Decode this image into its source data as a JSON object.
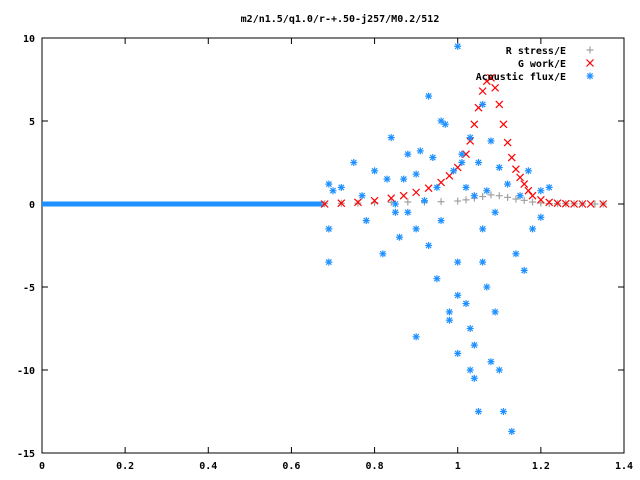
{
  "chart_data": {
    "type": "scatter",
    "title": "m2/n1.5/q1.0/r-+.50-j257/M0.2/512",
    "xlabel": "",
    "ylabel": "",
    "xlim": [
      0,
      1.4
    ],
    "ylim": [
      -15,
      10
    ],
    "x_ticks": [
      "0",
      "0.2",
      "0.4",
      "0.6",
      "0.8",
      "1",
      "1.2",
      "1.4"
    ],
    "y_ticks": [
      "10",
      "5",
      "0",
      "-5",
      "-10",
      "-15"
    ],
    "legend_position": "top-right",
    "grid": false,
    "series": [
      {
        "name": "R stress/E",
        "marker": "plus",
        "color": "#a0a0a0",
        "x": [
          0.68,
          0.72,
          0.76,
          0.8,
          0.84,
          0.88,
          0.92,
          0.96,
          1.0,
          1.02,
          1.04,
          1.06,
          1.08,
          1.1,
          1.12,
          1.14,
          1.16,
          1.18,
          1.2,
          1.22,
          1.24,
          1.26,
          1.28,
          1.3,
          1.33,
          1.35
        ],
        "y": [
          0.02,
          0.04,
          0.05,
          0.08,
          0.1,
          0.12,
          0.12,
          0.14,
          0.18,
          0.25,
          0.35,
          0.45,
          0.55,
          0.5,
          0.4,
          0.3,
          0.22,
          0.12,
          0.06,
          0.03,
          0.02,
          0.02,
          0.01,
          0.01,
          0.0,
          0.0
        ]
      },
      {
        "name": "G work/E",
        "marker": "cross",
        "color": "#ff0000",
        "x": [
          0.68,
          0.72,
          0.76,
          0.8,
          0.84,
          0.87,
          0.9,
          0.93,
          0.96,
          0.98,
          1.0,
          1.02,
          1.03,
          1.04,
          1.05,
          1.06,
          1.07,
          1.08,
          1.09,
          1.1,
          1.11,
          1.12,
          1.13,
          1.14,
          1.15,
          1.16,
          1.17,
          1.18,
          1.2,
          1.22,
          1.24,
          1.26,
          1.28,
          1.3,
          1.32,
          1.35
        ],
        "y": [
          0.0,
          0.05,
          0.1,
          0.2,
          0.35,
          0.5,
          0.7,
          0.95,
          1.3,
          1.7,
          2.2,
          3.0,
          3.8,
          4.8,
          5.8,
          6.8,
          7.4,
          7.6,
          7.0,
          6.0,
          4.8,
          3.7,
          2.8,
          2.1,
          1.6,
          1.2,
          0.8,
          0.5,
          0.25,
          0.1,
          0.05,
          0.02,
          0.0,
          0.0,
          0.0,
          0.0
        ]
      },
      {
        "name": "Acoustic flux/E",
        "marker": "star",
        "color": "#1e90ff",
        "x": [
          0.69,
          0.69,
          0.69,
          0.7,
          0.72,
          0.75,
          0.77,
          0.78,
          0.8,
          0.82,
          0.83,
          0.84,
          0.85,
          0.86,
          0.87,
          0.88,
          0.88,
          0.9,
          0.9,
          0.91,
          0.92,
          0.93,
          0.94,
          0.95,
          0.95,
          0.96,
          0.97,
          0.98,
          0.99,
          1.0,
          1.0,
          1.0,
          1.01,
          1.02,
          1.02,
          1.03,
          1.03,
          1.04,
          1.04,
          1.05,
          1.05,
          1.06,
          1.06,
          1.07,
          1.07,
          1.08,
          1.08,
          1.09,
          1.09,
          1.1,
          1.1,
          1.11,
          1.12,
          1.13,
          1.14,
          1.15,
          1.16,
          1.17,
          1.18,
          1.2,
          1.2,
          1.22,
          0.93,
          0.96,
          0.98,
          1.01,
          1.04,
          1.06,
          0.9,
          0.85,
          1.0,
          1.03
        ],
        "y": [
          1.2,
          -1.5,
          -3.5,
          0.8,
          1.0,
          2.5,
          0.5,
          -1.0,
          2.0,
          -3.0,
          1.5,
          4.0,
          0.0,
          -2.0,
          1.5,
          3.0,
          -0.5,
          1.8,
          -1.5,
          3.2,
          0.2,
          -2.5,
          2.8,
          -4.5,
          1.0,
          -1.0,
          4.8,
          -6.5,
          2.0,
          -3.5,
          9.5,
          -9.0,
          3.0,
          -6.0,
          1.0,
          -7.5,
          4.0,
          -10.5,
          0.5,
          -12.5,
          2.5,
          -3.5,
          6.0,
          -5.0,
          0.8,
          -9.5,
          3.8,
          -6.5,
          -0.5,
          -10.0,
          2.2,
          -12.5,
          1.2,
          -13.7,
          -3.0,
          0.5,
          -4.0,
          2.0,
          -1.5,
          0.8,
          -0.8,
          1.0,
          6.5,
          5.0,
          -7.0,
          2.5,
          -8.5,
          -1.5,
          -8.0,
          -0.5,
          -5.5,
          -10.0
        ]
      }
    ]
  }
}
